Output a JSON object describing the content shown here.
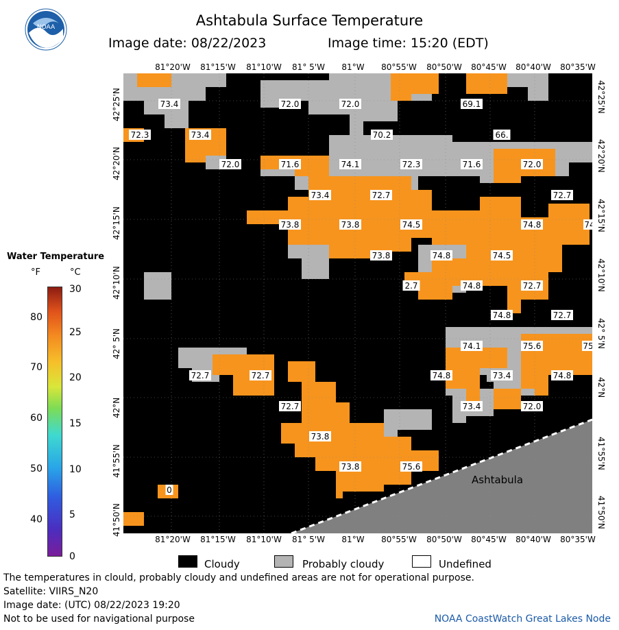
{
  "title": "Ashtabula Surface Temperature",
  "image_date_label": "Image date: 08/22/2023",
  "image_time_label": "Image time: 15:20 (EDT)",
  "logo_text": "NOAA",
  "legend": {
    "title": "Water Temperature",
    "unit_f": "°F",
    "unit_c": "°C",
    "f_ticks": [
      "80",
      "70",
      "60",
      "50",
      "40"
    ],
    "c_ticks": [
      "30",
      "25",
      "20",
      "15",
      "10",
      "5",
      "0"
    ]
  },
  "map": {
    "lon_labels_top": [
      "81°20'W",
      "81°15'W",
      "81°10'W",
      "81° 5'W",
      "81°W",
      "80°55'W",
      "80°50'W",
      "80°45'W",
      "80°40'W",
      "80°35'W"
    ],
    "lon_labels_bottom": [
      "81°20'W",
      "81°15'W",
      "81°10'W",
      "81° 5'W",
      "81°W",
      "80°55'W",
      "80°50'W",
      "80°45'W",
      "80°40'W",
      "80°35'W"
    ],
    "lat_labels": [
      "42°25'N",
      "42°20'N",
      "42°15'N",
      "42°10'N",
      "42° 5'N",
      "42°N",
      "41°55'N",
      "41°50'N"
    ],
    "place_label": "Ashtabula",
    "temp_labels": [
      "73.4",
      "72.0",
      "72.0",
      "69.1",
      "72.3",
      "73.4",
      "70.2",
      "66.",
      "72.0",
      "71.6",
      "74.1",
      "72.3",
      "71.6",
      "72.0",
      "73.4",
      "72.7",
      "72.7",
      "73.8",
      "73.8",
      "74.5",
      "74.8",
      "74",
      "73.8",
      "74.8",
      "74.5",
      "2.7",
      "74.8",
      "72.7",
      "74.8",
      "72.7",
      "74.1",
      "75.6",
      "75",
      "72.7",
      "72.7",
      "74.8",
      "73.4",
      "74.8",
      "72.7",
      "73.4",
      "72.0",
      "73.8",
      "73.8",
      "75.6",
      "0"
    ]
  },
  "key": {
    "cloudy": "Cloudy",
    "probably_cloudy": "Probably cloudy",
    "undefined": "Undefined"
  },
  "footer": {
    "line1": "The temperatures in clould, probably cloudy and undefined areas are not for operational purpose.",
    "line2": "Satellite: VIIRS_N20",
    "line3": "Image date: (UTC) 08/22/2023  19:20",
    "line4": "Not to be used for navigational purpose",
    "credit": "NOAA CoastWatch Great Lakes Node"
  },
  "colors": {
    "cloudy": "#000000",
    "probably_cloudy": "#b4b4b4",
    "land": "#808080",
    "water_warm": "#f7941d",
    "credit": "#1a5aa8"
  }
}
